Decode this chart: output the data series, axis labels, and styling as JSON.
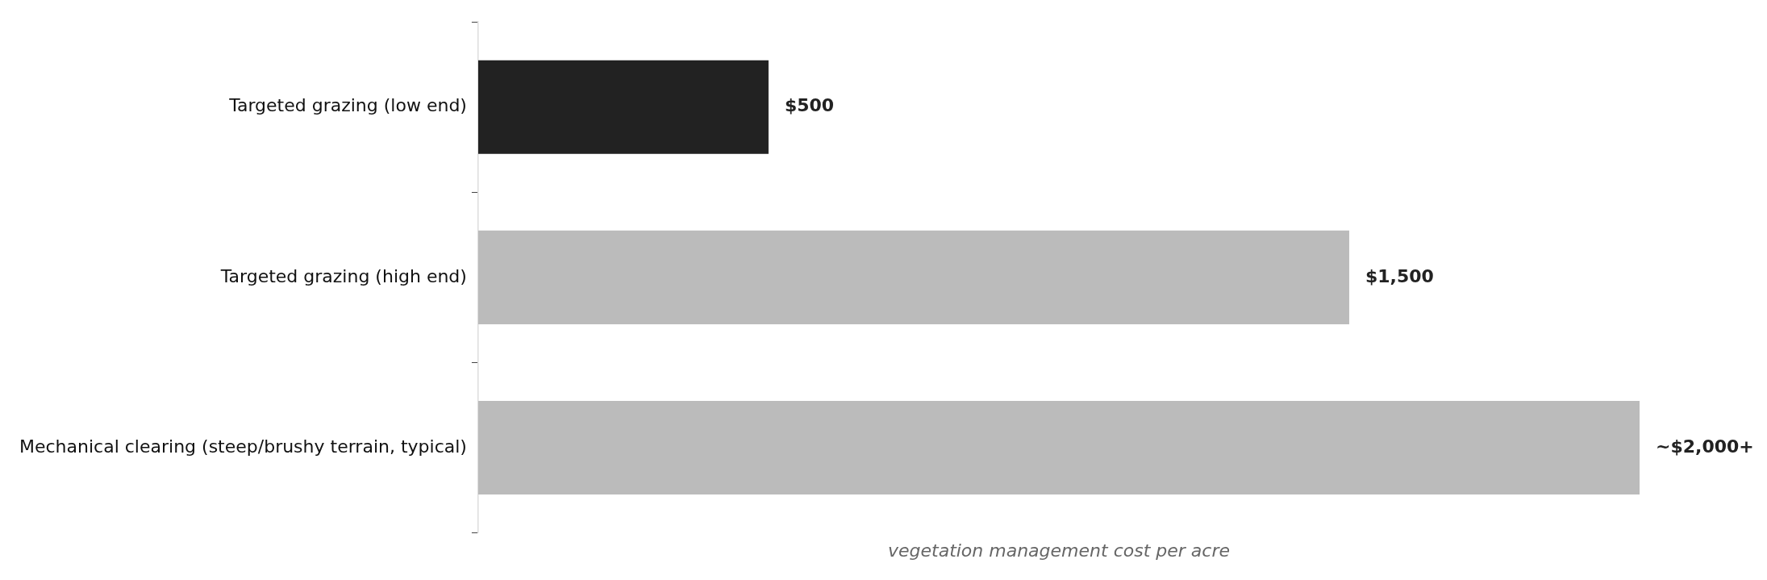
{
  "chart_data": {
    "type": "bar",
    "orientation": "horizontal",
    "xlabel": "vegetation management cost per acre",
    "categories": [
      "Targeted grazing (low end)",
      "Targeted grazing (high end)",
      "Mechanical clearing (steep/brushy terrain, typical)"
    ],
    "values": [
      500,
      1500,
      2000
    ],
    "colors": [
      "#222222",
      "#bbbbbb",
      "#bbbbbb"
    ],
    "value_labels": [
      "$500",
      "$1,500",
      "~$2,000+"
    ],
    "grid": false,
    "legend": false
  }
}
